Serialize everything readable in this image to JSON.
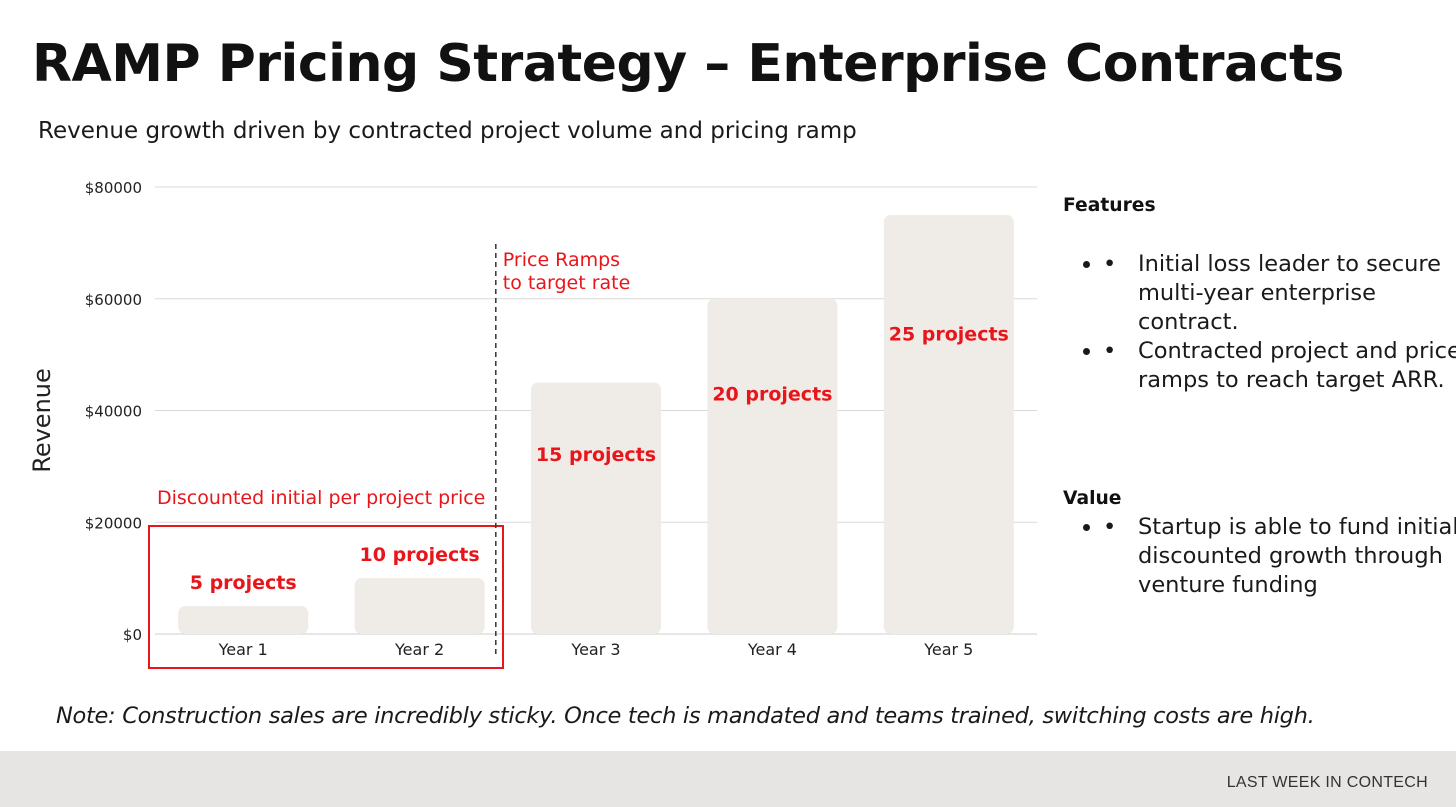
{
  "header": {
    "title": "RAMP Pricing Strategy – Enterprise Contracts",
    "subtitle": "Revenue growth driven by contracted project volume and pricing ramp"
  },
  "chart_data": {
    "type": "bar",
    "categories": [
      "Year 1",
      "Year 2",
      "Year 3",
      "Year 4",
      "Year 5"
    ],
    "values": [
      5000,
      10000,
      45000,
      60000,
      75000
    ],
    "bar_labels": [
      "5 projects",
      "10 projects",
      "15 projects",
      "20 projects",
      "25 projects"
    ],
    "ylabel": "Revenue",
    "xlabel": "",
    "ylim": [
      0,
      80000
    ],
    "yticks": [
      0,
      20000,
      40000,
      60000,
      80000
    ],
    "ytick_labels": [
      "$0",
      "$20000",
      "$40000",
      "$60000",
      "$80000"
    ],
    "grid": true,
    "annotations": [
      {
        "text": "Discounted initial per project price",
        "applies_to": [
          "Year 1",
          "Year 2"
        ]
      },
      {
        "text": "Price Ramps to target rate",
        "lines": [
          "Price Ramps",
          "to target rate"
        ],
        "between": [
          "Year 2",
          "Year 3"
        ]
      }
    ],
    "colors": {
      "bar": "#efebe6",
      "label": "#e8151b",
      "grid": "#d9d9d9",
      "axis_text": "#222222"
    }
  },
  "sidebar": {
    "features_heading": "Features",
    "features": [
      "Initial loss leader to secure multi-year enterprise contract.",
      "Contracted project and price ramps to reach target ARR."
    ],
    "value_heading": "Value",
    "value_items": [
      "Startup is able to fund initial discounted growth through venture funding"
    ],
    "bullet_glyph": "•"
  },
  "note": "Note: Construction sales are incredibly sticky. Once tech is mandated and teams trained, switching costs are high.",
  "footer": {
    "brand": "LAST WEEK IN CONTECH",
    "background": "#e6e5e3"
  }
}
